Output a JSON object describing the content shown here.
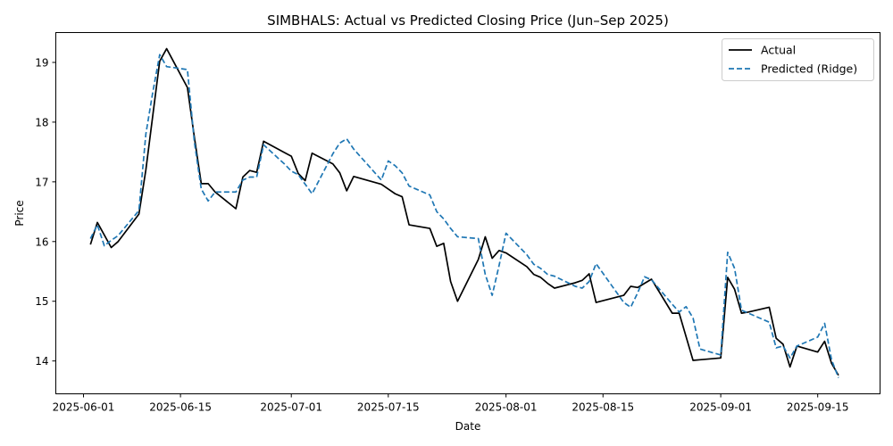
{
  "chart_data": {
    "type": "line",
    "title": "SIMBHALS: Actual vs Predicted Closing Price (Jun–Sep 2025)",
    "xlabel": "Date",
    "ylabel": "Price",
    "xlim": [
      "2025-05-28",
      "2025-09-24"
    ],
    "ylim": [
      13.45,
      19.5
    ],
    "grid": false,
    "legend_position": "top-right",
    "x_ticks": [
      "2025-06-01",
      "2025-06-15",
      "2025-07-01",
      "2025-07-15",
      "2025-08-01",
      "2025-08-15",
      "2025-09-01",
      "2025-09-15"
    ],
    "y_ticks": [
      "14",
      "15",
      "16",
      "17",
      "18",
      "19"
    ],
    "series": [
      {
        "name": "Actual",
        "color": "#000000",
        "style": "solid",
        "x": [
          "2025-06-02",
          "2025-06-03",
          "2025-06-05",
          "2025-06-06",
          "2025-06-09",
          "2025-06-10",
          "2025-06-12",
          "2025-06-13",
          "2025-06-16",
          "2025-06-17",
          "2025-06-18",
          "2025-06-19",
          "2025-06-20",
          "2025-06-23",
          "2025-06-24",
          "2025-06-25",
          "2025-06-26",
          "2025-06-27",
          "2025-06-30",
          "2025-07-01",
          "2025-07-02",
          "2025-07-03",
          "2025-07-04",
          "2025-07-07",
          "2025-07-08",
          "2025-07-09",
          "2025-07-10",
          "2025-07-14",
          "2025-07-15",
          "2025-07-16",
          "2025-07-17",
          "2025-07-18",
          "2025-07-21",
          "2025-07-22",
          "2025-07-23",
          "2025-07-24",
          "2025-07-25",
          "2025-07-28",
          "2025-07-29",
          "2025-07-30",
          "2025-07-31",
          "2025-08-01",
          "2025-08-04",
          "2025-08-05",
          "2025-08-06",
          "2025-08-07",
          "2025-08-08",
          "2025-08-11",
          "2025-08-12",
          "2025-08-13",
          "2025-08-14",
          "2025-08-18",
          "2025-08-19",
          "2025-08-20",
          "2025-08-21",
          "2025-08-22",
          "2025-08-25",
          "2025-08-26",
          "2025-08-28",
          "2025-08-29",
          "2025-09-01",
          "2025-09-02",
          "2025-09-03",
          "2025-09-04",
          "2025-09-05",
          "2025-09-08",
          "2025-09-09",
          "2025-09-10",
          "2025-09-11",
          "2025-09-12",
          "2025-09-15",
          "2025-09-16",
          "2025-09-17",
          "2025-09-18"
        ],
        "y": [
          15.95,
          16.32,
          15.9,
          16.0,
          16.46,
          17.2,
          19.02,
          19.23,
          18.58,
          17.75,
          16.97,
          16.97,
          16.83,
          16.55,
          17.08,
          17.19,
          17.16,
          17.68,
          17.49,
          17.43,
          17.14,
          17.02,
          17.48,
          17.3,
          17.15,
          16.85,
          17.09,
          16.96,
          16.88,
          16.8,
          16.75,
          16.28,
          16.22,
          15.92,
          15.97,
          15.33,
          15.0,
          15.7,
          16.08,
          15.72,
          15.85,
          15.81,
          15.58,
          15.45,
          15.4,
          15.3,
          15.22,
          15.31,
          15.35,
          15.46,
          14.98,
          15.1,
          15.25,
          15.23,
          15.3,
          15.37,
          14.8,
          14.8,
          14.01,
          14.02,
          14.05,
          15.4,
          15.2,
          14.8,
          14.82,
          14.9,
          14.38,
          14.28,
          13.9,
          14.25,
          14.15,
          14.33,
          13.96,
          13.76
        ]
      },
      {
        "name": "Predicted (Ridge)",
        "color": "#1f77b4",
        "style": "dashed",
        "x": [
          "2025-06-02",
          "2025-06-03",
          "2025-06-04",
          "2025-06-05",
          "2025-06-06",
          "2025-06-09",
          "2025-06-10",
          "2025-06-11",
          "2025-06-12",
          "2025-06-13",
          "2025-06-16",
          "2025-06-17",
          "2025-06-18",
          "2025-06-19",
          "2025-06-20",
          "2025-06-23",
          "2025-06-24",
          "2025-06-25",
          "2025-06-26",
          "2025-06-27",
          "2025-06-30",
          "2025-07-01",
          "2025-07-02",
          "2025-07-03",
          "2025-07-04",
          "2025-07-07",
          "2025-07-08",
          "2025-07-09",
          "2025-07-10",
          "2025-07-14",
          "2025-07-15",
          "2025-07-16",
          "2025-07-17",
          "2025-07-18",
          "2025-07-21",
          "2025-07-22",
          "2025-07-23",
          "2025-07-24",
          "2025-07-25",
          "2025-07-28",
          "2025-07-29",
          "2025-07-30",
          "2025-07-31",
          "2025-08-01",
          "2025-08-04",
          "2025-08-05",
          "2025-08-06",
          "2025-08-07",
          "2025-08-08",
          "2025-08-11",
          "2025-08-12",
          "2025-08-13",
          "2025-08-14",
          "2025-08-18",
          "2025-08-19",
          "2025-08-20",
          "2025-08-21",
          "2025-08-22",
          "2025-08-25",
          "2025-08-26",
          "2025-08-27",
          "2025-08-28",
          "2025-08-29",
          "2025-09-01",
          "2025-09-02",
          "2025-09-03",
          "2025-09-04",
          "2025-09-05",
          "2025-09-08",
          "2025-09-09",
          "2025-09-10",
          "2025-09-11",
          "2025-09-12",
          "2025-09-15",
          "2025-09-16",
          "2025-09-17",
          "2025-09-18"
        ],
        "y": [
          16.05,
          16.28,
          15.93,
          16.02,
          16.1,
          16.52,
          17.8,
          18.5,
          19.13,
          18.93,
          18.88,
          17.67,
          16.88,
          16.68,
          16.83,
          16.83,
          17.03,
          17.08,
          17.08,
          17.62,
          17.3,
          17.18,
          17.12,
          16.96,
          16.8,
          17.47,
          17.65,
          17.72,
          17.55,
          17.03,
          17.35,
          17.27,
          17.15,
          16.93,
          16.78,
          16.5,
          16.38,
          16.22,
          16.08,
          16.05,
          15.45,
          15.1,
          15.6,
          16.14,
          15.78,
          15.62,
          15.55,
          15.45,
          15.42,
          15.25,
          15.22,
          15.33,
          15.63,
          14.98,
          14.9,
          15.14,
          15.41,
          15.36,
          14.95,
          14.82,
          14.91,
          14.72,
          14.2,
          14.1,
          15.82,
          15.55,
          14.85,
          14.8,
          14.65,
          14.22,
          14.25,
          14.05,
          14.25,
          14.4,
          14.63,
          14.02,
          13.72
        ]
      }
    ]
  }
}
